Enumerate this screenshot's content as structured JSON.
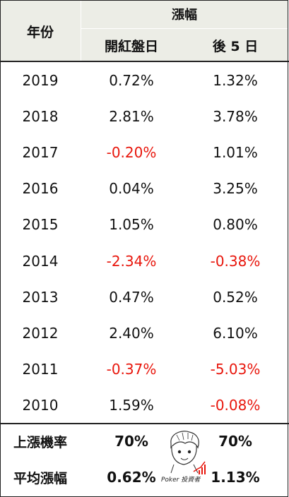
{
  "header": {
    "year_label": "年份",
    "group_label": "漲幅",
    "col_open_label": "開紅盤日",
    "col_after_label": "後 5 日"
  },
  "rows": [
    {
      "year": "2019",
      "open": "0.72%",
      "after": "1.32%",
      "open_neg": false,
      "after_neg": false
    },
    {
      "year": "2018",
      "open": "2.81%",
      "after": "3.78%",
      "open_neg": false,
      "after_neg": false
    },
    {
      "year": "2017",
      "open": "-0.20%",
      "after": "1.01%",
      "open_neg": true,
      "after_neg": false
    },
    {
      "year": "2016",
      "open": "0.04%",
      "after": "3.25%",
      "open_neg": false,
      "after_neg": false
    },
    {
      "year": "2015",
      "open": "1.05%",
      "after": "0.80%",
      "open_neg": false,
      "after_neg": false
    },
    {
      "year": "2014",
      "open": "-2.34%",
      "after": "-0.38%",
      "open_neg": true,
      "after_neg": true
    },
    {
      "year": "2013",
      "open": "0.47%",
      "after": "0.52%",
      "open_neg": false,
      "after_neg": false
    },
    {
      "year": "2012",
      "open": "2.40%",
      "after": "6.10%",
      "open_neg": false,
      "after_neg": false
    },
    {
      "year": "2011",
      "open": "-0.37%",
      "after": "-5.03%",
      "open_neg": true,
      "after_neg": true
    },
    {
      "year": "2010",
      "open": "1.59%",
      "after": "-0.08%",
      "open_neg": false,
      "after_neg": true
    }
  ],
  "summary": [
    {
      "label": "上漲機率",
      "open": "70%",
      "after": "70%"
    },
    {
      "label": "平均漲幅",
      "open": "0.62%",
      "after": "1.13%"
    }
  ],
  "colors": {
    "header_bg": "#ecede6",
    "negative": "#e8160c",
    "text": "#111111"
  },
  "watermark": {
    "icon": "cartoon-avatar-icon",
    "text": "Poker 投資者"
  }
}
